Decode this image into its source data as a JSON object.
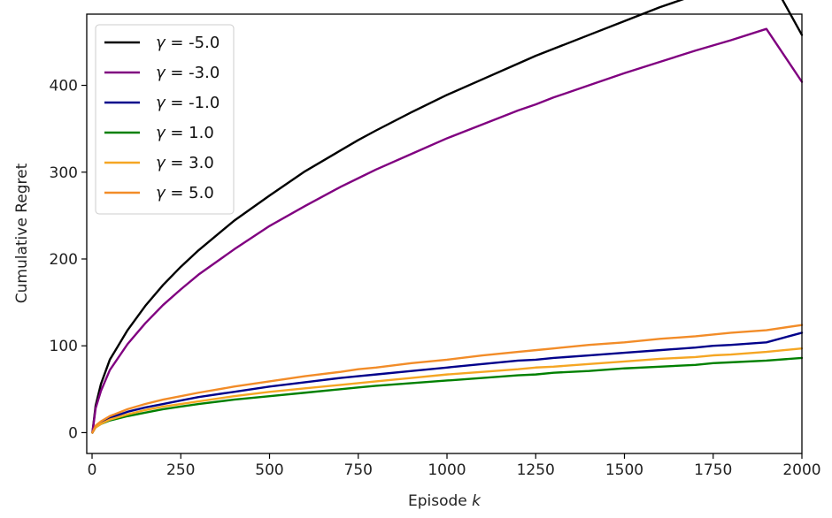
{
  "chart_data": {
    "type": "line",
    "xlabel": "Episode k",
    "xlabel_main": "Episode ",
    "xlabel_var": "k",
    "ylabel": "Cumulative Regret",
    "xlim": [
      -15,
      2000
    ],
    "ylim": [
      -24,
      482
    ],
    "xticks": [
      0,
      250,
      500,
      750,
      1000,
      1250,
      1500,
      1750,
      2000
    ],
    "xtick_labels": [
      "0",
      "250",
      "500",
      "750",
      "1000",
      "1250",
      "1500",
      "1750",
      "2000"
    ],
    "yticks": [
      0,
      100,
      200,
      300,
      400
    ],
    "ytick_labels": [
      "0",
      "100",
      "200",
      "300",
      "400"
    ],
    "grid": false,
    "legend_position": "top-left",
    "x": [
      1,
      10,
      25,
      50,
      100,
      150,
      200,
      250,
      300,
      400,
      500,
      600,
      700,
      750,
      800,
      900,
      1000,
      1100,
      1200,
      1250,
      1300,
      1400,
      1500,
      1600,
      1700,
      1750,
      1800,
      1900,
      2000
    ],
    "series": [
      {
        "name": "γ = -5.0",
        "legend_var": "γ",
        "legend_value": "= -5.0",
        "color": "#000000",
        "values": [
          0,
          31,
          56,
          84,
          118,
          146,
          170,
          191,
          210,
          244,
          273,
          301,
          325,
          337,
          348,
          369,
          389,
          407,
          425,
          434,
          442,
          458,
          474,
          490,
          504,
          511,
          518,
          532,
          458
        ]
      },
      {
        "name": "γ = -3.0",
        "legend_var": "γ",
        "legend_value": "= -3.0",
        "color": "#800080",
        "values": [
          0,
          28,
          48,
          72,
          102,
          126,
          147,
          165,
          182,
          211,
          238,
          261,
          283,
          293,
          303,
          321,
          339,
          355,
          371,
          378,
          386,
          400,
          414,
          427,
          440,
          446,
          452,
          465,
          404
        ]
      },
      {
        "name": "γ = -1.0",
        "legend_var": "γ",
        "legend_value": "= -1.0",
        "color": "#00008b",
        "values": [
          0,
          7,
          12,
          17,
          24,
          29,
          33,
          37,
          41,
          47,
          53,
          58,
          63,
          65,
          67,
          71,
          75,
          79,
          83,
          84,
          86,
          89,
          92,
          95,
          98,
          100,
          101,
          104,
          115
        ]
      },
      {
        "name": "γ = 1.0",
        "legend_var": "γ",
        "legend_value": "= 1.0",
        "color": "#008000",
        "values": [
          0,
          6,
          10,
          14,
          19,
          23,
          27,
          30,
          33,
          38,
          42,
          46,
          50,
          52,
          54,
          57,
          60,
          63,
          66,
          67,
          69,
          71,
          74,
          76,
          78,
          80,
          81,
          83,
          86
        ]
      },
      {
        "name": "γ = 3.0",
        "legend_var": "γ",
        "legend_value": "= 3.0",
        "color": "#f5a623",
        "values": [
          0,
          6,
          10,
          15,
          21,
          26,
          30,
          33,
          36,
          42,
          47,
          51,
          55,
          57,
          59,
          63,
          67,
          70,
          73,
          75,
          76,
          79,
          82,
          85,
          87,
          89,
          90,
          93,
          97
        ]
      },
      {
        "name": "γ = 5.0",
        "legend_var": "γ",
        "legend_value": "= 5.0",
        "color": "#f28c28",
        "values": [
          0,
          8,
          13,
          19,
          27,
          33,
          38,
          42,
          46,
          53,
          59,
          65,
          70,
          73,
          75,
          80,
          84,
          89,
          93,
          95,
          97,
          101,
          104,
          108,
          111,
          113,
          115,
          118,
          124
        ]
      }
    ]
  }
}
